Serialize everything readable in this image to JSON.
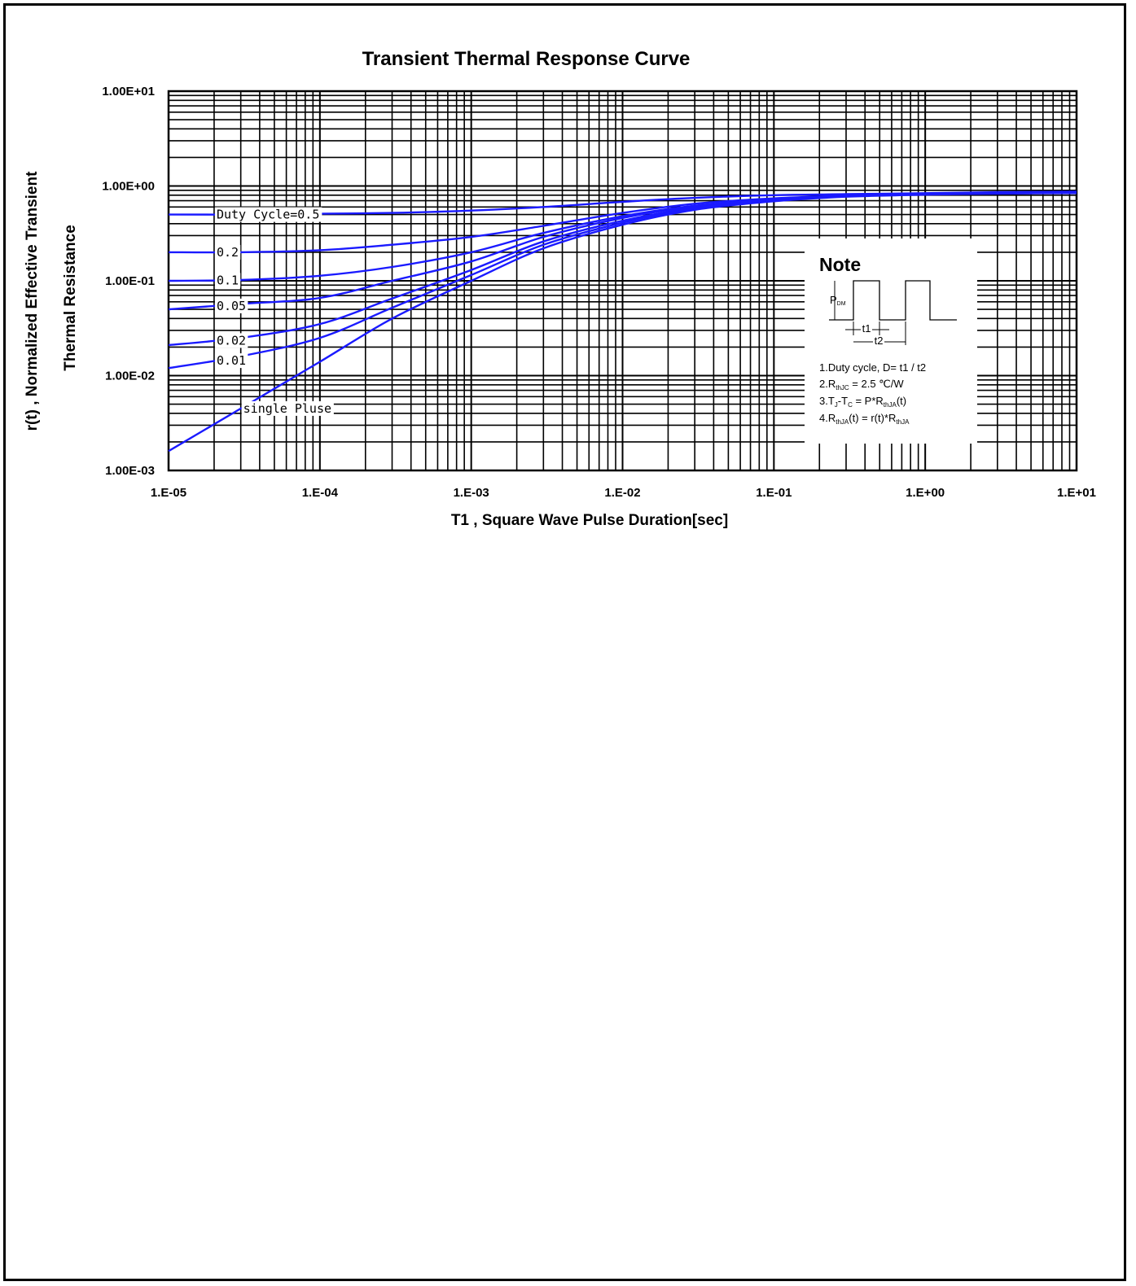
{
  "chart_data": {
    "type": "line",
    "title": "Transient Thermal Response Curve",
    "xlabel": "T1 , Square Wave Pulse Duration[sec]",
    "ylabel_line1": "r(t) , Normalized Effective Transient",
    "ylabel_line2": "Thermal Resistance",
    "x_scale": "log",
    "y_scale": "log",
    "xlim": [
      1e-05,
      10
    ],
    "ylim": [
      0.001,
      10
    ],
    "grid": true,
    "x_ticks": [
      {
        "value": 1e-05,
        "label": "1.E-05"
      },
      {
        "value": 0.0001,
        "label": "1.E-04"
      },
      {
        "value": 0.001,
        "label": "1.E-03"
      },
      {
        "value": 0.01,
        "label": "1.E-02"
      },
      {
        "value": 0.1,
        "label": "1.E-01"
      },
      {
        "value": 1,
        "label": "1.E+00"
      },
      {
        "value": 10,
        "label": "1.E+01"
      }
    ],
    "y_ticks": [
      {
        "value": 10,
        "label": "1.00E+01"
      },
      {
        "value": 1,
        "label": "1.00E+00"
      },
      {
        "value": 0.1,
        "label": "1.00E-01"
      },
      {
        "value": 0.01,
        "label": "1.00E-02"
      },
      {
        "value": 0.001,
        "label": "1.00E-03"
      }
    ],
    "line_color": "#1a1aff",
    "series": [
      {
        "name": "Duty Cycle=0.5",
        "label_at": 2e-05,
        "x": [
          1e-05,
          3e-05,
          0.0001,
          0.0003,
          0.001,
          0.003,
          0.01,
          0.03,
          0.1,
          0.3,
          1,
          3,
          10
        ],
        "y": [
          0.5,
          0.5,
          0.51,
          0.52,
          0.55,
          0.6,
          0.68,
          0.75,
          0.8,
          0.82,
          0.84,
          0.86,
          0.87
        ]
      },
      {
        "name": "0.2",
        "label_at": 2e-05,
        "x": [
          1e-05,
          3e-05,
          0.0001,
          0.0003,
          0.001,
          0.003,
          0.01,
          0.03,
          0.1,
          0.3,
          1,
          3,
          10
        ],
        "y": [
          0.2,
          0.2,
          0.21,
          0.24,
          0.29,
          0.38,
          0.52,
          0.65,
          0.74,
          0.79,
          0.83,
          0.85,
          0.86
        ]
      },
      {
        "name": "0.1",
        "label_at": 2e-05,
        "x": [
          1e-05,
          3e-05,
          0.0001,
          0.0003,
          0.001,
          0.003,
          0.01,
          0.03,
          0.1,
          0.3,
          1,
          3,
          10
        ],
        "y": [
          0.1,
          0.102,
          0.113,
          0.14,
          0.2,
          0.32,
          0.48,
          0.62,
          0.72,
          0.79,
          0.83,
          0.85,
          0.86
        ]
      },
      {
        "name": "0.05",
        "label_at": 2e-05,
        "x": [
          1e-05,
          3e-05,
          0.0001,
          0.0003,
          0.001,
          0.003,
          0.01,
          0.03,
          0.1,
          0.3,
          1,
          3,
          10
        ],
        "y": [
          0.05,
          0.057,
          0.066,
          0.1,
          0.16,
          0.29,
          0.46,
          0.61,
          0.72,
          0.79,
          0.83,
          0.85,
          0.86
        ]
      },
      {
        "name": "0.02",
        "label_at": 2e-05,
        "x": [
          1e-05,
          3e-05,
          0.0001,
          0.0003,
          0.001,
          0.003,
          0.01,
          0.03,
          0.1,
          0.3,
          1,
          3,
          10
        ],
        "y": [
          0.021,
          0.025,
          0.035,
          0.065,
          0.13,
          0.26,
          0.43,
          0.59,
          0.71,
          0.78,
          0.82,
          0.84,
          0.85
        ]
      },
      {
        "name": "0.01",
        "label_at": 2e-05,
        "x": [
          1e-05,
          3e-05,
          0.0001,
          0.0003,
          0.001,
          0.003,
          0.01,
          0.03,
          0.1,
          0.3,
          1,
          3,
          10
        ],
        "y": [
          0.012,
          0.016,
          0.025,
          0.052,
          0.115,
          0.24,
          0.41,
          0.58,
          0.7,
          0.78,
          0.82,
          0.84,
          0.85
        ]
      },
      {
        "name": "single Pluse",
        "label_at": 3e-05,
        "x": [
          1e-05,
          3e-05,
          0.0001,
          0.0003,
          0.001,
          0.003,
          0.01,
          0.03,
          0.1,
          0.3,
          1,
          3,
          10
        ],
        "y": [
          0.0016,
          0.0045,
          0.014,
          0.04,
          0.1,
          0.22,
          0.39,
          0.56,
          0.69,
          0.77,
          0.81,
          0.83,
          0.84
        ]
      }
    ]
  },
  "note": {
    "heading": "Note",
    "pulse_label": "P",
    "pulse_sub": "DM",
    "t1_label": "t1",
    "t2_label": "t2",
    "line1": "1.Duty cycle, D= t1 / t2",
    "line2": [
      {
        "t": "2.R"
      },
      {
        "t": "thJC",
        "sub": true
      },
      {
        "t": " =   2.5 ℃/W"
      }
    ],
    "line3": [
      {
        "t": "3.T"
      },
      {
        "t": "J",
        "sub": true
      },
      {
        "t": "-T"
      },
      {
        "t": "C",
        "sub": true
      },
      {
        "t": " = P*R"
      },
      {
        "t": "thJA",
        "sub": true
      },
      {
        "t": "(t)"
      }
    ],
    "line4": [
      {
        "t": "4.R"
      },
      {
        "t": "thJA",
        "sub": true
      },
      {
        "t": "(t) = r(t)*R"
      },
      {
        "t": "thJA",
        "sub": true
      }
    ]
  }
}
